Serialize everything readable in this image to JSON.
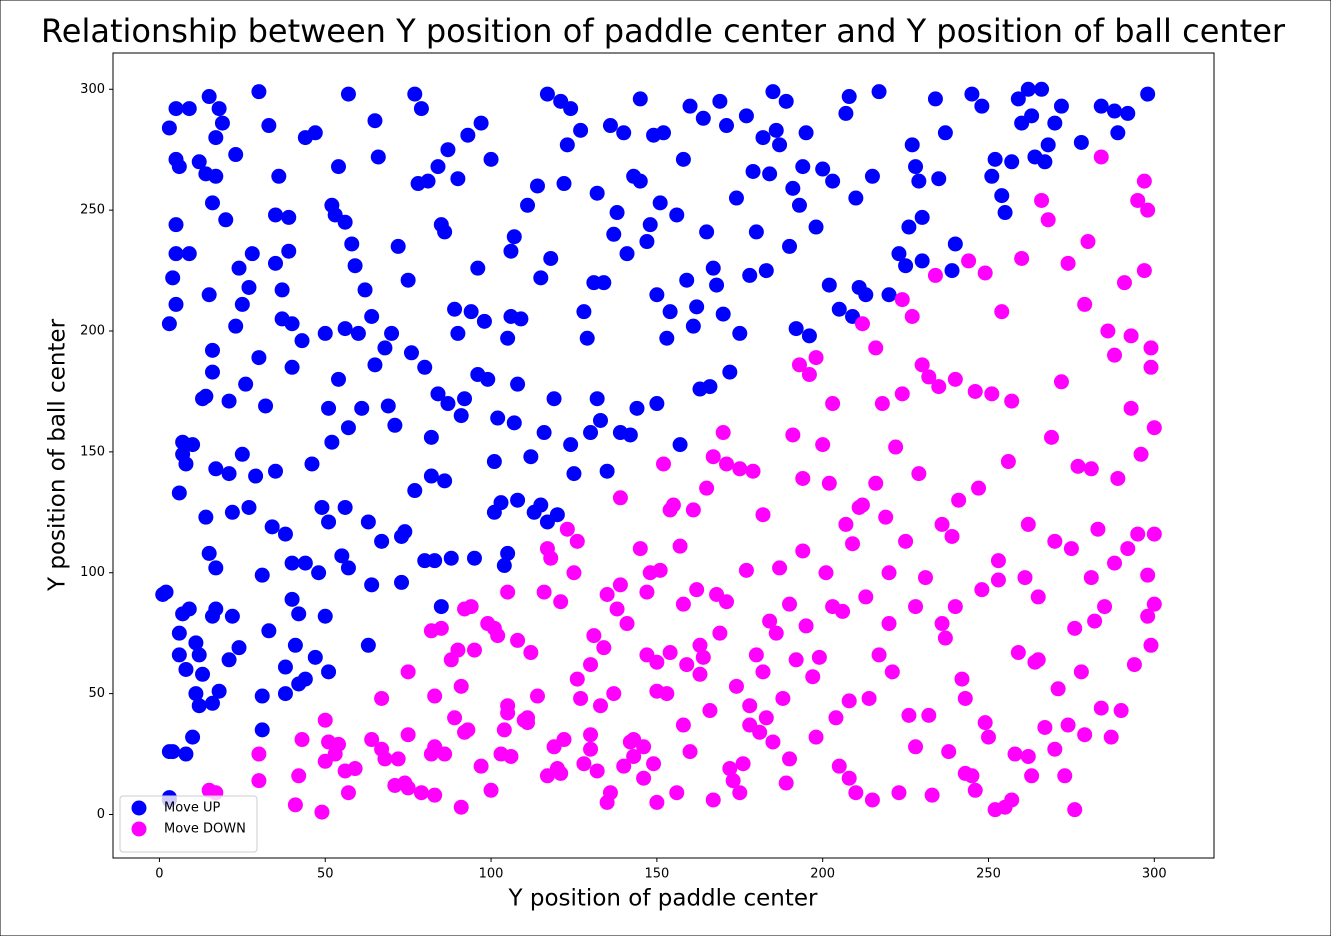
{
  "chart_data": {
    "type": "scatter",
    "title": "Relationship between Y position of paddle center and Y position of ball center",
    "x_label": "Y position of paddle center",
    "y_label": "Y position of ball center",
    "xlim": [
      -14,
      318
    ],
    "ylim": [
      -18,
      315
    ],
    "xticks": [
      0,
      50,
      100,
      150,
      200,
      250,
      300
    ],
    "yticks": [
      0,
      50,
      100,
      150,
      200,
      250,
      300
    ],
    "legend_loc": "lower left",
    "series": [
      {
        "name": "Move UP",
        "color": "#0000ff",
        "x": [
          1,
          2,
          3,
          4,
          3,
          3,
          3,
          3,
          4,
          5,
          5,
          5,
          5,
          5,
          6,
          6,
          6,
          6,
          7,
          7,
          7,
          8,
          8,
          8,
          9,
          9,
          9,
          10,
          10,
          11,
          11,
          12,
          12,
          12,
          13,
          13,
          14,
          14,
          14,
          15,
          15,
          15,
          16,
          16,
          16,
          16,
          16,
          17,
          17,
          17,
          17,
          17,
          18,
          18,
          19,
          20,
          21,
          21,
          21,
          22,
          22,
          23,
          23,
          24,
          24,
          25,
          25,
          26,
          27,
          27,
          28,
          29,
          30,
          30,
          31,
          31,
          31,
          32,
          33,
          33,
          34,
          35,
          35,
          35,
          36,
          37,
          37,
          38,
          38,
          38,
          39,
          39,
          40,
          40,
          40,
          40,
          41,
          42,
          42,
          43,
          44,
          44,
          44,
          46,
          47,
          47,
          48,
          49,
          50,
          50,
          51,
          51,
          51,
          52,
          52,
          53,
          54,
          54,
          55,
          56,
          56,
          56,
          57,
          57,
          57,
          58,
          59,
          60,
          61,
          62,
          63,
          63,
          64,
          64,
          65,
          65,
          66,
          67,
          68,
          69,
          70,
          71,
          72,
          73,
          73,
          74,
          75,
          76,
          77,
          77,
          78,
          79,
          80,
          80,
          81,
          82,
          82,
          83,
          84,
          84,
          85,
          85,
          86,
          86,
          87,
          87,
          88,
          89,
          90,
          90,
          91,
          92,
          93,
          94,
          95,
          96,
          96,
          97,
          98,
          99,
          100,
          101,
          101,
          102,
          103,
          104,
          105,
          105,
          106,
          106,
          107,
          107,
          108,
          108,
          109,
          111,
          112,
          113,
          114,
          115,
          115,
          116,
          117,
          117,
          118,
          119,
          120,
          121,
          122,
          123,
          124,
          124,
          125,
          127,
          128,
          129,
          130,
          131,
          132,
          132,
          133,
          134,
          135,
          136,
          137,
          138,
          139,
          140,
          141,
          142,
          143,
          144,
          145,
          145,
          147,
          148,
          149,
          150,
          150,
          151,
          152,
          153,
          154,
          156,
          157,
          158,
          159,
          160,
          161,
          162,
          163,
          164,
          165,
          166,
          167,
          168,
          169,
          170,
          171,
          172,
          174,
          175,
          177,
          178,
          179,
          180,
          182,
          183,
          184,
          185,
          186,
          187,
          189,
          190,
          191,
          192,
          193,
          194,
          195,
          196,
          198,
          200,
          202,
          203,
          205,
          207,
          208,
          209,
          210,
          211,
          213,
          215,
          217,
          220,
          223,
          225,
          226,
          227,
          228,
          229,
          230,
          230,
          234,
          235,
          237,
          239,
          240,
          245,
          248,
          251,
          252,
          254,
          255,
          257,
          259,
          260,
          262,
          263,
          264,
          266,
          267,
          268,
          270,
          272,
          278,
          284,
          288,
          289,
          292,
          298
        ],
        "y": [
          91,
          92,
          26,
          26,
          7,
          6,
          284,
          203,
          222,
          244,
          211,
          232,
          292,
          271,
          268,
          133,
          75,
          66,
          83,
          149,
          154,
          145,
          60,
          25,
          85,
          232,
          292,
          32,
          153,
          50,
          71,
          45,
          66,
          270,
          172,
          58,
          173,
          265,
          123,
          108,
          215,
          297,
          46,
          82,
          253,
          192,
          183,
          143,
          85,
          102,
          280,
          264,
          292,
          51,
          286,
          246,
          64,
          171,
          141,
          125,
          82,
          273,
          202,
          69,
          226,
          211,
          149,
          178,
          127,
          218,
          232,
          140,
          189,
          299,
          49,
          99,
          35,
          169,
          76,
          285,
          119,
          248,
          228,
          142,
          264,
          205,
          217,
          116,
          50,
          61,
          247,
          233,
          104,
          89,
          185,
          203,
          70,
          54,
          83,
          196,
          280,
          104,
          56,
          145,
          282,
          65,
          100,
          127,
          199,
          82,
          121,
          168,
          59,
          252,
          154,
          248,
          180,
          268,
          107,
          127,
          201,
          245,
          298,
          102,
          160,
          236,
          227,
          199,
          168,
          217,
          121,
          70,
          95,
          206,
          287,
          186,
          272,
          113,
          193,
          169,
          199,
          161,
          235,
          96,
          115,
          117,
          221,
          191,
          134,
          298,
          261,
          292,
          105,
          185,
          262,
          156,
          140,
          105,
          268,
          174,
          86,
          244,
          241,
          138,
          170,
          275,
          106,
          209,
          199,
          263,
          165,
          172,
          281,
          208,
          106,
          226,
          182,
          286,
          204,
          180,
          271,
          146,
          125,
          164,
          129,
          103,
          108,
          197,
          233,
          206,
          239,
          162,
          130,
          178,
          205,
          252,
          148,
          125,
          260,
          222,
          128,
          158,
          121,
          298,
          230,
          172,
          124,
          295,
          261,
          277,
          292,
          153,
          141,
          283,
          208,
          197,
          158,
          220,
          257,
          172,
          163,
          220,
          142,
          285,
          240,
          249,
          158,
          282,
          232,
          157,
          264,
          168,
          262,
          296,
          237,
          244,
          281,
          170,
          215,
          253,
          282,
          197,
          208,
          248,
          153,
          271,
          221,
          293,
          202,
          210,
          176,
          288,
          241,
          177,
          226,
          219,
          295,
          207,
          285,
          183,
          255,
          199,
          289,
          223,
          266,
          241,
          280,
          225,
          265,
          299,
          283,
          277,
          295,
          235,
          259,
          201,
          252,
          268,
          282,
          198,
          243,
          267,
          219,
          262,
          209,
          290,
          297,
          206,
          255,
          218,
          215,
          264,
          299,
          215,
          232,
          227,
          243,
          277,
          268,
          262,
          229,
          247,
          296,
          263,
          282,
          225,
          236,
          298,
          293,
          264,
          271,
          256,
          249,
          270,
          296,
          286,
          300,
          289,
          272,
          300,
          270,
          277,
          286,
          293,
          278,
          293,
          291,
          282,
          290,
          298
        ]
      },
      {
        "name": "Move DOWN",
        "color": "#ff00ff",
        "x": [
          15,
          17,
          30,
          30,
          41,
          42,
          43,
          49,
          50,
          50,
          51,
          53,
          54,
          56,
          57,
          59,
          67,
          67,
          68,
          72,
          74,
          75,
          75,
          75,
          82,
          82,
          83,
          83,
          83,
          85,
          88,
          89,
          90,
          91,
          91,
          92,
          93,
          94,
          95,
          99,
          100,
          101,
          102,
          104,
          105,
          105,
          105,
          106,
          108,
          111,
          111,
          112,
          116,
          117,
          117,
          118,
          119,
          120,
          121,
          122,
          123,
          125,
          126,
          127,
          128,
          130,
          130,
          131,
          132,
          133,
          134,
          135,
          136,
          137,
          138,
          139,
          140,
          141,
          142,
          143,
          145,
          146,
          147,
          147,
          148,
          149,
          150,
          150,
          151,
          152,
          153,
          154,
          155,
          156,
          157,
          158,
          159,
          160,
          161,
          162,
          163,
          164,
          165,
          166,
          167,
          168,
          169,
          170,
          171,
          172,
          173,
          174,
          175,
          176,
          177,
          178,
          179,
          180,
          181,
          182,
          183,
          184,
          185,
          187,
          188,
          189,
          190,
          191,
          192,
          193,
          194,
          195,
          196,
          197,
          198,
          199,
          200,
          201,
          202,
          203,
          204,
          205,
          206,
          207,
          208,
          209,
          210,
          211,
          212,
          213,
          214,
          215,
          216,
          217,
          218,
          219,
          220,
          221,
          222,
          223,
          224,
          225,
          226,
          227,
          228,
          229,
          230,
          231,
          232,
          233,
          234,
          235,
          236,
          237,
          238,
          239,
          240,
          241,
          242,
          243,
          244,
          245,
          246,
          247,
          248,
          249,
          250,
          251,
          252,
          253,
          254,
          255,
          256,
          257,
          258,
          259,
          260,
          261,
          262,
          263,
          264,
          265,
          266,
          267,
          268,
          269,
          270,
          271,
          272,
          273,
          274,
          275,
          276,
          277,
          278,
          279,
          280,
          281,
          282,
          283,
          284,
          285,
          286,
          287,
          288,
          289,
          290,
          291,
          292,
          293,
          294,
          295,
          296,
          297,
          298,
          299,
          300,
          300,
          299,
          298,
          297,
          300,
          299,
          298,
          295,
          293,
          288,
          284,
          281,
          279,
          276,
          274,
          270,
          265,
          262,
          257,
          253,
          249,
          246,
          243,
          240,
          236,
          232,
          228,
          224,
          220,
          216,
          212,
          208,
          203,
          198,
          194,
          190,
          186,
          182,
          178,
          175,
          171,
          167,
          163,
          158,
          154,
          150,
          146,
          143,
          139,
          135,
          130,
          126,
          121,
          114,
          110,
          103,
          97,
          92,
          86,
          79,
          71,
          64
        ],
        "y": [
          10,
          9,
          25,
          14,
          4,
          16,
          31,
          1,
          22,
          39,
          30,
          25,
          29,
          18,
          9,
          19,
          48,
          27,
          23,
          23,
          13,
          11,
          33,
          59,
          76,
          25,
          28,
          8,
          49,
          77,
          64,
          40,
          68,
          53,
          3,
          34,
          35,
          86,
          68,
          79,
          10,
          77,
          74,
          35,
          45,
          42,
          92,
          24,
          72,
          40,
          38,
          67,
          92,
          16,
          110,
          106,
          28,
          19,
          88,
          31,
          118,
          100,
          113,
          48,
          21,
          33,
          27,
          74,
          18,
          45,
          69,
          91,
          9,
          50,
          85,
          95,
          20,
          79,
          30,
          24,
          110,
          15,
          66,
          92,
          100,
          21,
          63,
          51,
          101,
          145,
          50,
          126,
          128,
          9,
          111,
          37,
          62,
          26,
          126,
          93,
          58,
          65,
          135,
          43,
          6,
          91,
          75,
          158,
          145,
          19,
          14,
          53,
          143,
          21,
          101,
          45,
          142,
          66,
          34,
          59,
          40,
          80,
          30,
          102,
          48,
          13,
          23,
          157,
          64,
          186,
          139,
          78,
          182,
          57,
          189,
          65,
          153,
          100,
          137,
          170,
          40,
          20,
          84,
          120,
          15,
          112,
          9,
          127,
          203,
          90,
          48,
          6,
          193,
          66,
          170,
          123,
          79,
          59,
          152,
          9,
          213,
          113,
          41,
          206,
          86,
          141,
          186,
          98,
          181,
          8,
          223,
          177,
          79,
          73,
          26,
          115,
          180,
          130,
          56,
          48,
          229,
          16,
          175,
          135,
          93,
          224,
          32,
          174,
          2,
          105,
          208,
          3,
          146,
          171,
          25,
          67,
          230,
          98,
          120,
          16,
          63,
          90,
          254,
          36,
          246,
          156,
          113,
          52,
          179,
          16,
          228,
          110,
          2,
          144,
          59,
          211,
          237,
          98,
          80,
          118,
          272,
          86,
          200,
          32,
          190,
          139,
          43,
          220,
          110,
          168,
          62,
          254,
          149,
          225,
          250,
          193,
          160,
          87,
          70,
          99,
          262,
          116,
          185,
          82,
          116,
          198,
          104,
          44,
          143,
          33,
          77,
          37,
          27,
          64,
          24,
          6,
          97,
          38,
          10,
          17,
          86,
          120,
          41,
          28,
          174,
          100,
          137,
          128,
          47,
          86,
          32,
          109,
          87,
          75,
          124,
          37,
          9,
          88,
          148,
          70,
          87,
          67,
          5,
          28,
          31,
          131,
          5,
          62,
          56,
          17,
          49,
          39,
          25,
          20,
          85,
          25,
          9,
          12,
          31
        ]
      }
    ]
  }
}
